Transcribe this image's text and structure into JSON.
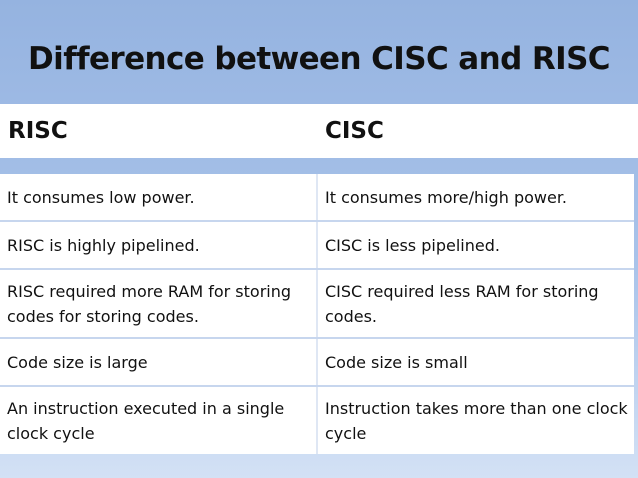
{
  "slide": {
    "title": "Difference between CISC and RISC",
    "header": {
      "left": "RISC",
      "right": "CISC"
    },
    "rows": [
      {
        "risc": "It consumes low power.",
        "cisc": "It consumes more/high power."
      },
      {
        "risc": "RISC is highly pipelined.",
        "cisc": "CISC is less pipelined."
      },
      {
        "risc": "RISC required more RAM for storing codes for storing codes.",
        "cisc": "CISC required less RAM for storing codes."
      },
      {
        "risc": "Code size is large",
        "cisc": "Code size is small"
      },
      {
        "risc": "An instruction executed in a single clock cycle",
        "cisc": "Instruction takes more than one clock cycle"
      }
    ]
  }
}
